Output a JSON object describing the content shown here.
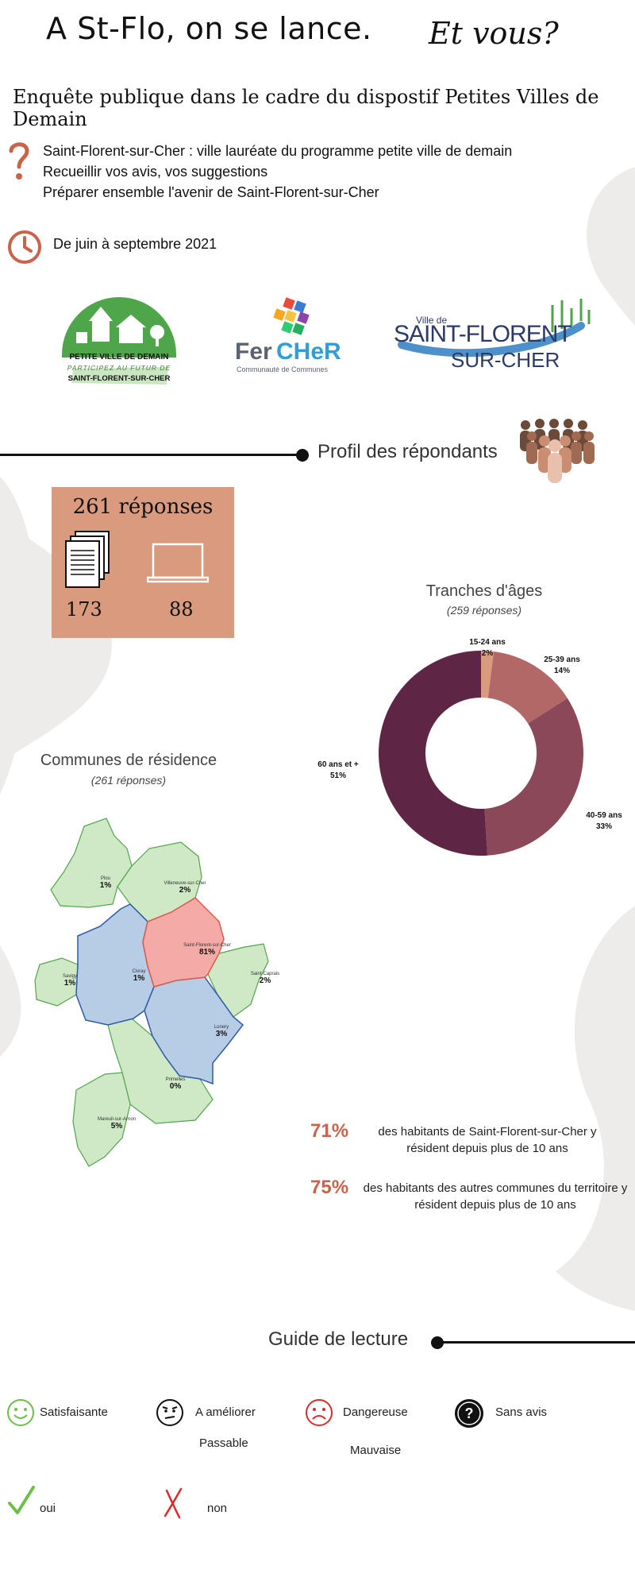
{
  "header": {
    "title": "A St-Flo, on se lance.",
    "title_italic": "Et vous?",
    "subtitle": "Enquête publique dans le cadre du dispostif Petites Villes de Demain"
  },
  "intro": {
    "lines": [
      "Saint-Florent-sur-Cher : ville lauréate du programme petite ville de demain",
      "Recueillir vos avis, vos suggestions",
      "Préparer ensemble l'avenir de Saint-Florent-sur-Cher"
    ],
    "dates": "De juin à septembre 2021",
    "icon_question": "question-mark-icon",
    "icon_clock": "clock-icon"
  },
  "logos": {
    "pvd": {
      "line1": "PETITE VILLE DE DEMAIN",
      "line2": "PARTICIPEZ AU FUTUR DE",
      "line3": "SAINT-FLORENT-SUR-CHER"
    },
    "fercher": {
      "name_a": "Fer",
      "name_b": "CHeR",
      "tagline": "Communauté de Communes"
    },
    "city": {
      "prefix": "Ville de",
      "line1": "SAINT-FLORENT",
      "line2": "SUR-CHER"
    }
  },
  "profile": {
    "section_title": "Profil des répondants",
    "total_label": "261 réponses",
    "paper_count": "173",
    "online_count": "88",
    "icons": [
      "people-group-icon",
      "paper-stack-icon",
      "laptop-icon"
    ]
  },
  "age_chart": {
    "title": "Tranches d'âges",
    "subtitle": "(259 réponses)"
  },
  "chart_data": {
    "type": "pie",
    "title": "Tranches d'âges",
    "subtitle": "(259 réponses)",
    "categories": [
      "15-24 ans",
      "25-39 ans",
      "40-59 ans",
      "60 ans et +"
    ],
    "values": [
      2,
      14,
      33,
      51
    ],
    "labels": [
      "2%",
      "14%",
      "33%",
      "51%"
    ],
    "colors": [
      "#d99a7e",
      "#b36868",
      "#8b4859",
      "#5e2644"
    ]
  },
  "residence": {
    "title": "Communes de résidence",
    "subtitle": "(261 réponses)",
    "communes": [
      {
        "name": "Plou",
        "pct": "1%"
      },
      {
        "name": "Villeneuve-sur-Cher",
        "pct": "2%"
      },
      {
        "name": "Saint-Florent-sur-Cher",
        "pct": "81%"
      },
      {
        "name": "Saint-Caprais",
        "pct": "2%"
      },
      {
        "name": "Savigy",
        "pct": "1%"
      },
      {
        "name": "Civray",
        "pct": "1%"
      },
      {
        "name": "Lunery",
        "pct": "3%"
      },
      {
        "name": "Primelles",
        "pct": "0%"
      },
      {
        "name": "Mareuil-sur-Arnon",
        "pct": "5%"
      }
    ],
    "colors": {
      "green": "#cfe8c6",
      "blue": "#b7cde6",
      "red": "#f4aaa6"
    }
  },
  "stats": [
    {
      "pct": "71%",
      "text": "des habitants de Saint-Florent-sur-Cher y résident depuis plus de 10 ans"
    },
    {
      "pct": "75%",
      "text": "des habitants des autres communes du territoire y résident depuis plus de 10 ans"
    }
  ],
  "guide": {
    "section_title": "Guide de lecture",
    "items": [
      {
        "label": "Satisfaisante",
        "icon": "smile-icon"
      },
      {
        "label": "A améliorer",
        "icon": "skeptical-face-icon"
      },
      {
        "label": "Passable",
        "icon": ""
      },
      {
        "label": "Dangereuse",
        "icon": "frown-icon"
      },
      {
        "label": "Mauvaise",
        "icon": ""
      },
      {
        "label": "Sans avis",
        "icon": "question-circle-icon"
      },
      {
        "label": "oui",
        "icon": "check-icon"
      },
      {
        "label": "non",
        "icon": "cross-icon"
      }
    ]
  }
}
